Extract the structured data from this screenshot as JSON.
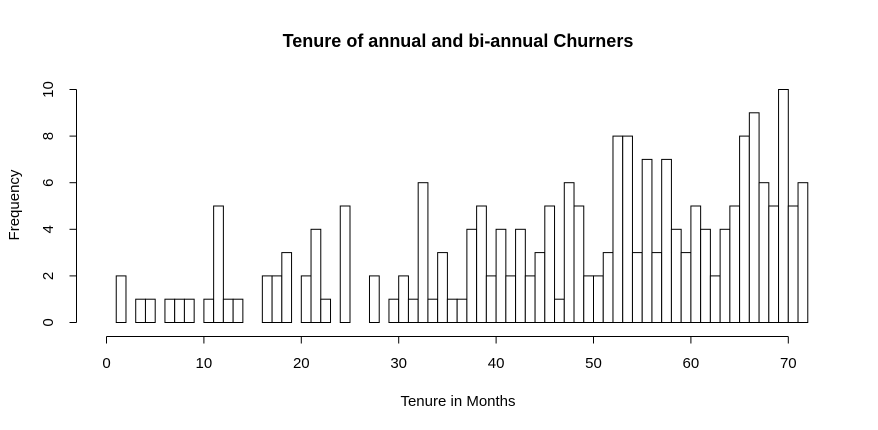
{
  "chart_data": {
    "type": "bar",
    "subtype": "histogram",
    "title": "Tenure of annual and bi-annual Churners",
    "xlabel": "Tenure in Months",
    "ylabel": "Frequency",
    "xlim": [
      0,
      72
    ],
    "ylim": [
      0,
      10
    ],
    "x_ticks": [
      "0",
      "10",
      "20",
      "30",
      "40",
      "50",
      "60",
      "70"
    ],
    "y_ticks": [
      "0",
      "2",
      "4",
      "6",
      "8",
      "10"
    ],
    "bin_width": 1,
    "bins_start": 1,
    "values": [
      2,
      0,
      1,
      1,
      0,
      1,
      1,
      1,
      0,
      1,
      5,
      1,
      1,
      0,
      0,
      2,
      2,
      3,
      0,
      2,
      4,
      1,
      0,
      5,
      0,
      0,
      2,
      0,
      1,
      2,
      1,
      6,
      1,
      3,
      1,
      1,
      4,
      5,
      2,
      4,
      2,
      4,
      2,
      3,
      5,
      1,
      6,
      5,
      2,
      2,
      3,
      8,
      8,
      3,
      7,
      3,
      7,
      4,
      3,
      5,
      4,
      2,
      4,
      5,
      8,
      9,
      6,
      5,
      10,
      5,
      6
    ],
    "grid": false,
    "colors": {
      "bar_fill": "#ffffff",
      "bar_stroke": "#000000"
    }
  }
}
